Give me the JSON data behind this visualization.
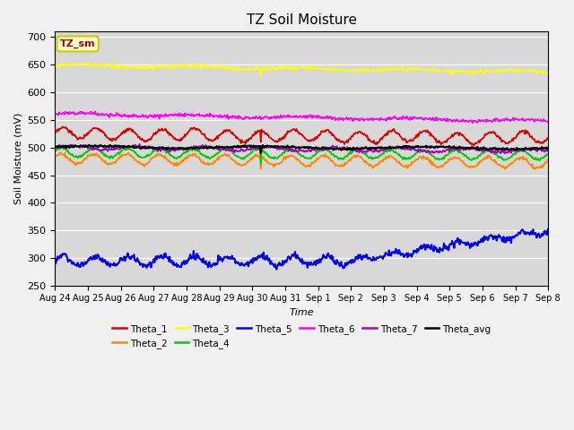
{
  "title": "TZ Soil Moisture",
  "xlabel": "Time",
  "ylabel": "Soil Moisture (mV)",
  "ylim": [
    250,
    710
  ],
  "yticks": [
    250,
    300,
    350,
    400,
    450,
    500,
    550,
    600,
    650,
    700
  ],
  "bg_color": "#d8d8d8",
  "fig_bg_color": "#f0f0f0",
  "label_box_text": "TZ_sm",
  "legend_entries": [
    {
      "label": "Theta_1",
      "color": "#dd0000"
    },
    {
      "label": "Theta_2",
      "color": "#ff8800"
    },
    {
      "label": "Theta_3",
      "color": "#ffff00"
    },
    {
      "label": "Theta_4",
      "color": "#00cc00"
    },
    {
      "label": "Theta_5",
      "color": "#0000ee"
    },
    {
      "label": "Theta_6",
      "color": "#ff00ff"
    },
    {
      "label": "Theta_7",
      "color": "#aa00cc"
    },
    {
      "label": "Theta_avg",
      "color": "#000000"
    }
  ],
  "xtick_labels": [
    "Aug 24",
    "Aug 25",
    "Aug 26",
    "Aug 27",
    "Aug 28",
    "Aug 29",
    "Aug 30",
    "Aug 31",
    "Sep 1",
    "Sep 2",
    "Sep 3",
    "Sep 4",
    "Sep 5",
    "Sep 6",
    "Sep 7",
    "Sep 8"
  ],
  "n_days": 15,
  "n_points": 720,
  "spike_day": 6.25
}
